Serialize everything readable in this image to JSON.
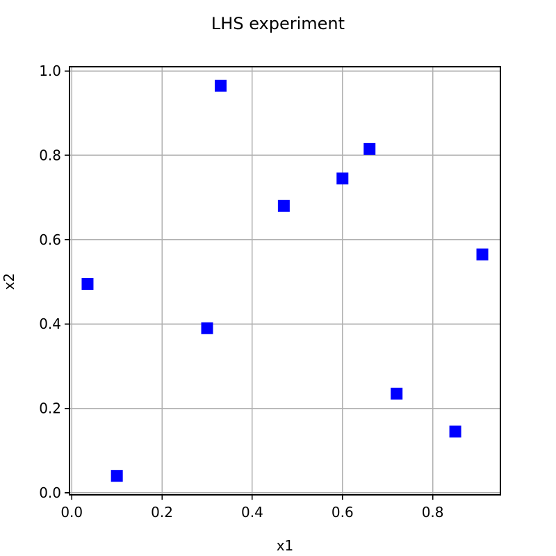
{
  "chart_data": {
    "type": "scatter",
    "title": "LHS experiment",
    "xlabel": "x1",
    "ylabel": "x2",
    "xlim": [
      -0.005,
      0.95
    ],
    "ylim": [
      -0.005,
      1.01
    ],
    "xticks": [
      "0.0",
      "0.2",
      "0.4",
      "0.6",
      "0.8"
    ],
    "yticks": [
      "0.0",
      "0.2",
      "0.4",
      "0.6",
      "0.8",
      "1.0"
    ],
    "grid": true,
    "marker": "square",
    "marker_color": "#0000ff",
    "points": [
      {
        "x": 0.035,
        "y": 0.495
      },
      {
        "x": 0.1,
        "y": 0.04
      },
      {
        "x": 0.3,
        "y": 0.39
      },
      {
        "x": 0.33,
        "y": 0.965
      },
      {
        "x": 0.47,
        "y": 0.68
      },
      {
        "x": 0.6,
        "y": 0.745
      },
      {
        "x": 0.66,
        "y": 0.815
      },
      {
        "x": 0.72,
        "y": 0.235
      },
      {
        "x": 0.85,
        "y": 0.145
      },
      {
        "x": 0.91,
        "y": 0.565
      }
    ]
  },
  "colors": {
    "grid": "#b0b0b0",
    "marker": "#0000ff",
    "frame": "#000000"
  }
}
